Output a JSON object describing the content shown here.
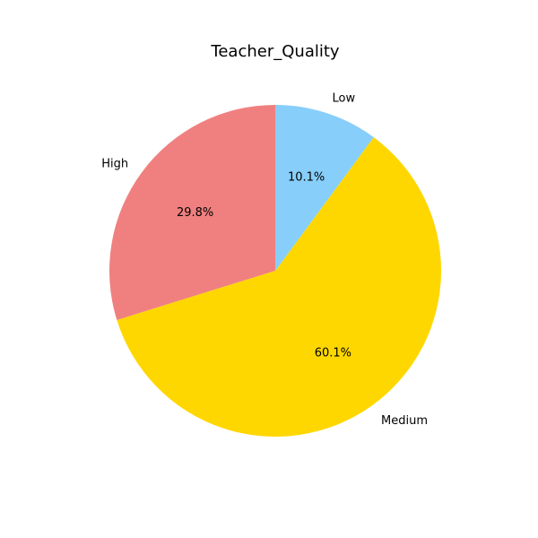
{
  "chart_data": {
    "type": "pie",
    "title": "Teacher_Quality",
    "slices": [
      {
        "label": "High",
        "value": 29.8,
        "pct_label": "29.8%",
        "color": "#F08080"
      },
      {
        "label": "Medium",
        "value": 60.1,
        "pct_label": "60.1%",
        "color": "#FFD700"
      },
      {
        "label": "Low",
        "value": 10.1,
        "pct_label": "10.1%",
        "color": "#87CEFA"
      }
    ],
    "start_angle": 90,
    "direction": "counterclockwise",
    "legend": "none"
  }
}
